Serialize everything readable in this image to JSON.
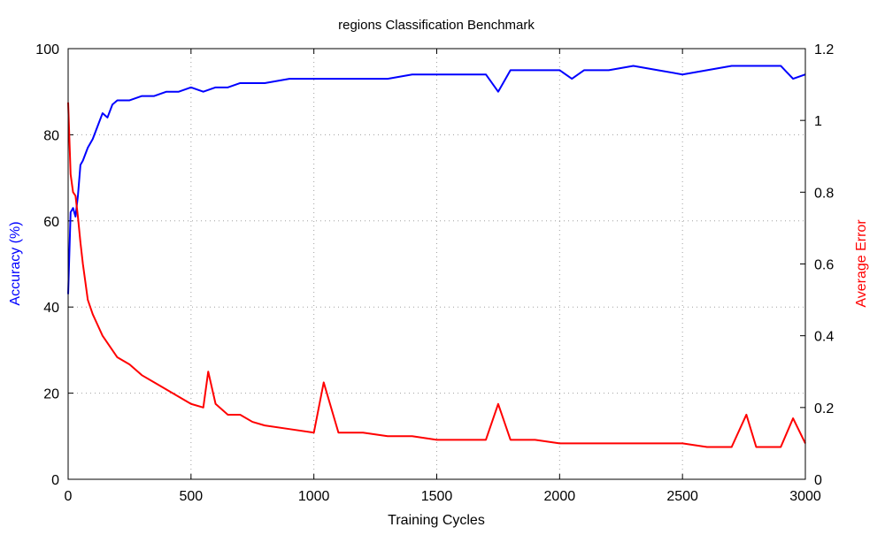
{
  "chart_data": {
    "type": "line",
    "title": "regions Classification Benchmark",
    "xlabel": "Training Cycles",
    "ylabel_left": "Accuracy (%)",
    "ylabel_right": "Average Error",
    "xlim": [
      0,
      3000
    ],
    "ylim_left": [
      0,
      100
    ],
    "ylim_right": [
      0,
      1.2
    ],
    "x_ticks": [
      "0",
      "500",
      "1000",
      "1500",
      "2000",
      "2500",
      "3000"
    ],
    "y_left_ticks": [
      "0",
      "20",
      "40",
      "60",
      "80",
      "100"
    ],
    "y_right_ticks": [
      "0",
      "0.2",
      "0.4",
      "0.6",
      "0.8",
      "1",
      "1.2"
    ],
    "grid": true,
    "series": [
      {
        "axis": "left",
        "color": "#0000ff",
        "x": [
          0,
          10,
          20,
          30,
          40,
          50,
          60,
          80,
          100,
          120,
          140,
          160,
          180,
          200,
          250,
          300,
          350,
          400,
          450,
          500,
          550,
          600,
          650,
          700,
          750,
          800,
          900,
          1000,
          1100,
          1200,
          1300,
          1400,
          1500,
          1600,
          1700,
          1750,
          1800,
          1900,
          2000,
          2050,
          2100,
          2200,
          2300,
          2400,
          2500,
          2600,
          2700,
          2800,
          2900,
          2950,
          3000
        ],
        "values": [
          43,
          62,
          63,
          61,
          66,
          73,
          74,
          77,
          79,
          82,
          85,
          84,
          87,
          88,
          88,
          89,
          89,
          90,
          90,
          91,
          90,
          91,
          91,
          92,
          92,
          92,
          93,
          93,
          93,
          93,
          93,
          94,
          94,
          94,
          94,
          90,
          95,
          95,
          95,
          93,
          95,
          95,
          96,
          95,
          94,
          95,
          96,
          96,
          96,
          93,
          94
        ]
      },
      {
        "axis": "right",
        "color": "#ff0000",
        "x": [
          0,
          10,
          20,
          30,
          40,
          50,
          60,
          70,
          80,
          90,
          100,
          120,
          140,
          160,
          180,
          200,
          250,
          300,
          350,
          400,
          450,
          500,
          550,
          570,
          600,
          650,
          700,
          750,
          800,
          900,
          1000,
          1040,
          1100,
          1200,
          1300,
          1400,
          1500,
          1600,
          1700,
          1750,
          1800,
          1900,
          2000,
          2100,
          2200,
          2300,
          2400,
          2500,
          2600,
          2700,
          2760,
          2800,
          2900,
          2950,
          3000
        ],
        "values": [
          1.05,
          0.85,
          0.8,
          0.79,
          0.73,
          0.66,
          0.6,
          0.55,
          0.5,
          0.48,
          0.46,
          0.43,
          0.4,
          0.38,
          0.36,
          0.34,
          0.32,
          0.29,
          0.27,
          0.25,
          0.23,
          0.21,
          0.2,
          0.3,
          0.21,
          0.18,
          0.18,
          0.16,
          0.15,
          0.14,
          0.13,
          0.27,
          0.13,
          0.13,
          0.12,
          0.12,
          0.11,
          0.11,
          0.11,
          0.21,
          0.11,
          0.11,
          0.1,
          0.1,
          0.1,
          0.1,
          0.1,
          0.1,
          0.09,
          0.09,
          0.18,
          0.09,
          0.09,
          0.17,
          0.1
        ]
      }
    ]
  }
}
